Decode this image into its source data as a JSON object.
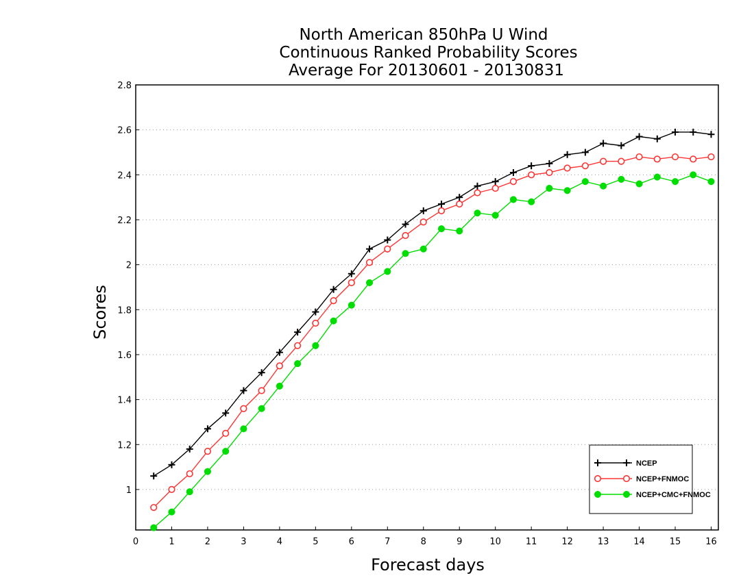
{
  "chart_data": {
    "type": "line",
    "title": [
      "North American 850hPa U Wind",
      "Continuous Ranked Probability Scores",
      "Average For 20130601 - 20130831"
    ],
    "xlabel": "Forecast days",
    "ylabel": "Scores",
    "xlim": [
      0,
      16.2
    ],
    "ylim": [
      0.82,
      2.8
    ],
    "xticks": [
      0,
      1,
      2,
      3,
      4,
      5,
      6,
      7,
      8,
      9,
      10,
      11,
      12,
      13,
      14,
      15,
      16
    ],
    "yticks": [
      1,
      1.2,
      1.4,
      1.6,
      1.8,
      2,
      2.2,
      2.4,
      2.6,
      2.8
    ],
    "ytick_labels": [
      "1",
      "1.2",
      "1.4",
      "1.6",
      "1.8",
      "2",
      "2.2",
      "2.4",
      "2.6",
      "2.8"
    ],
    "grid": "horizontal dotted",
    "legend_position": "bottom-right",
    "x": [
      0.5,
      1.0,
      1.5,
      2.0,
      2.5,
      3.0,
      3.5,
      4.0,
      4.5,
      5.0,
      5.5,
      6.0,
      6.5,
      7.0,
      7.5,
      8.0,
      8.5,
      9.0,
      9.5,
      10.0,
      10.5,
      11.0,
      11.5,
      12.0,
      12.5,
      13.0,
      13.5,
      14.0,
      14.5,
      15.0,
      15.5,
      16.0
    ],
    "series": [
      {
        "name": "NCEP",
        "color": "#000000",
        "marker": "plus",
        "values": [
          1.06,
          1.11,
          1.18,
          1.27,
          1.34,
          1.44,
          1.52,
          1.61,
          1.7,
          1.79,
          1.89,
          1.96,
          2.07,
          2.11,
          2.18,
          2.24,
          2.27,
          2.3,
          2.35,
          2.37,
          2.41,
          2.44,
          2.45,
          2.49,
          2.5,
          2.54,
          2.53,
          2.57,
          2.56,
          2.59,
          2.59,
          2.58
        ]
      },
      {
        "name": "NCEP+FNMOC",
        "color": "#ff3333",
        "marker": "open-circle",
        "values": [
          0.92,
          1.0,
          1.07,
          1.17,
          1.25,
          1.36,
          1.44,
          1.55,
          1.64,
          1.74,
          1.84,
          1.92,
          2.01,
          2.07,
          2.13,
          2.19,
          2.24,
          2.27,
          2.32,
          2.34,
          2.37,
          2.4,
          2.41,
          2.43,
          2.44,
          2.46,
          2.46,
          2.48,
          2.47,
          2.48,
          2.47,
          2.48
        ]
      },
      {
        "name": "NCEP+CMC+FNMOC",
        "color": "#00dd00",
        "marker": "filled-circle",
        "values": [
          0.83,
          0.9,
          0.99,
          1.08,
          1.17,
          1.27,
          1.36,
          1.46,
          1.56,
          1.64,
          1.75,
          1.82,
          1.92,
          1.97,
          2.05,
          2.07,
          2.16,
          2.15,
          2.23,
          2.22,
          2.29,
          2.28,
          2.34,
          2.33,
          2.37,
          2.35,
          2.38,
          2.36,
          2.39,
          2.37,
          2.4,
          2.37
        ]
      }
    ]
  }
}
